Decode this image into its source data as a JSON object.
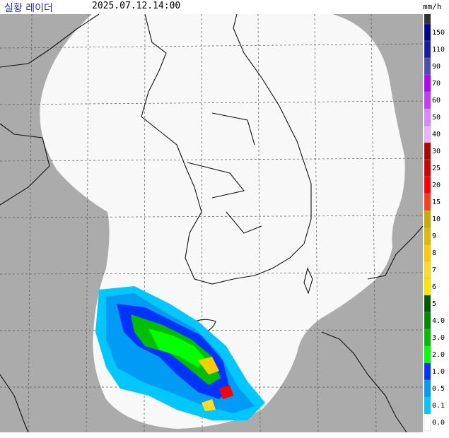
{
  "header": {
    "title": "실황 레이더",
    "time": "2025.07.12.14:00"
  },
  "legend": {
    "unit": "mm/h",
    "items": [
      {
        "label": "150",
        "color": "#000390"
      },
      {
        "label": "110",
        "color": "#1a1aa8"
      },
      {
        "label": "90",
        "color": "#4c4eb1"
      },
      {
        "label": "70",
        "color": "#b300ff"
      },
      {
        "label": "60",
        "color": "#c23bff"
      },
      {
        "label": "50",
        "color": "#da87ff"
      },
      {
        "label": "40",
        "color": "#e6b4ff"
      },
      {
        "label": "30",
        "color": "#b40000"
      },
      {
        "label": "25",
        "color": "#d20000"
      },
      {
        "label": "20",
        "color": "#ff0000"
      },
      {
        "label": "15",
        "color": "#ff3c1e"
      },
      {
        "label": "10",
        "color": "#ccaa00"
      },
      {
        "label": "9",
        "color": "#e0b900"
      },
      {
        "label": "8",
        "color": "#f9cd00"
      },
      {
        "label": "7",
        "color": "#ffdc1f"
      },
      {
        "label": "6",
        "color": "#ffe600"
      },
      {
        "label": "5",
        "color": "#005a00"
      },
      {
        "label": "4.0",
        "color": "#008c00"
      },
      {
        "label": "3.0",
        "color": "#00be00"
      },
      {
        "label": "2.0",
        "color": "#00ff00"
      },
      {
        "label": "1.0",
        "color": "#0033ff"
      },
      {
        "label": "0.5",
        "color": "#009bf5"
      },
      {
        "label": "0.1",
        "color": "#00c8ff"
      },
      {
        "label": "0.0",
        "color": "#ffffff"
      }
    ]
  }
}
